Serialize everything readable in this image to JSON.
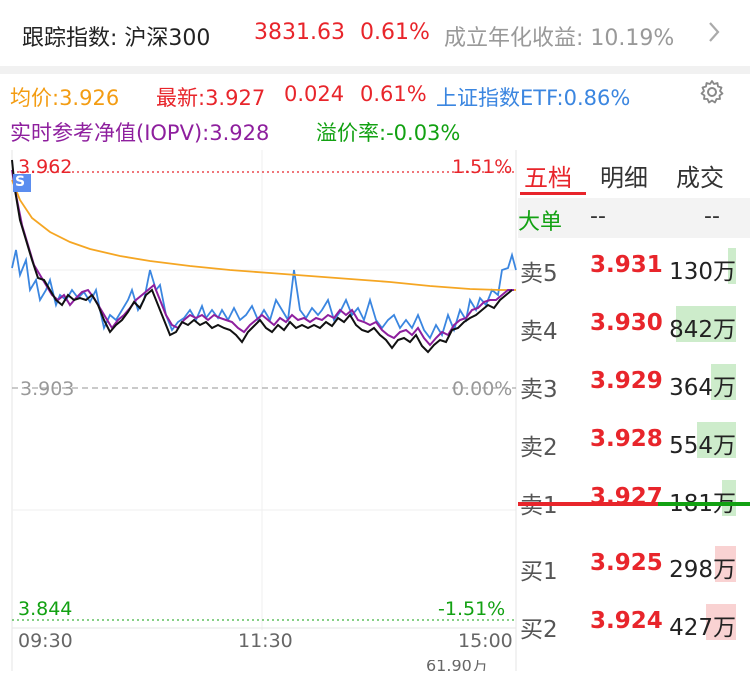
{
  "header": {
    "index_label": "跟踪指数: 沪深300",
    "index_value": "3831.63",
    "index_change": "0.61%",
    "annual_return": "成立年化收益: 10.19%",
    "chevron": "chevron-right-icon"
  },
  "quote": {
    "avg_price": "均价:3.926",
    "latest": "最新:3.927",
    "change": "0.024",
    "change_pct": "0.61%",
    "etf_label": "上证指数ETF:0.86%",
    "iopv": "实时参考净值(IOPV):3.928",
    "premium": "溢价率:-0.03%",
    "settings_icon": "gear-icon"
  },
  "chart": {
    "top_price": "3.962",
    "top_pct": "1.51%",
    "mid_price": "3.903",
    "mid_pct": "0.00%",
    "bottom_price": "3.844",
    "bottom_pct": "-1.51%",
    "badge": "S",
    "time_start": "09:30",
    "time_mid": "11:30",
    "time_end": "15:00",
    "volume_label": "61.90万",
    "colors": {
      "price": "#111111",
      "avg": "#f5a623",
      "iopv": "#8e1f9e",
      "etf": "#3b86e0"
    }
  },
  "order_book": {
    "tabs": [
      "五档",
      "明细",
      "成交"
    ],
    "header_label": "大单",
    "header_val1": "--",
    "header_val2": "--",
    "sells": [
      {
        "label": "卖5",
        "price": "3.931",
        "volume": "130万",
        "bar": 0.12
      },
      {
        "label": "卖4",
        "price": "3.930",
        "volume": "842万",
        "bar": 0.85
      },
      {
        "label": "卖3",
        "price": "3.929",
        "volume": "364万",
        "bar": 0.35
      },
      {
        "label": "卖2",
        "price": "3.928",
        "volume": "554万",
        "bar": 0.56
      },
      {
        "label": "卖1",
        "price": "3.927",
        "volume": "181万",
        "bar": 0.2
      }
    ],
    "buys": [
      {
        "label": "买1",
        "price": "3.925",
        "volume": "298万",
        "bar": 0.3
      },
      {
        "label": "买2",
        "price": "3.924",
        "volume": "427万",
        "bar": 0.43
      }
    ]
  }
}
